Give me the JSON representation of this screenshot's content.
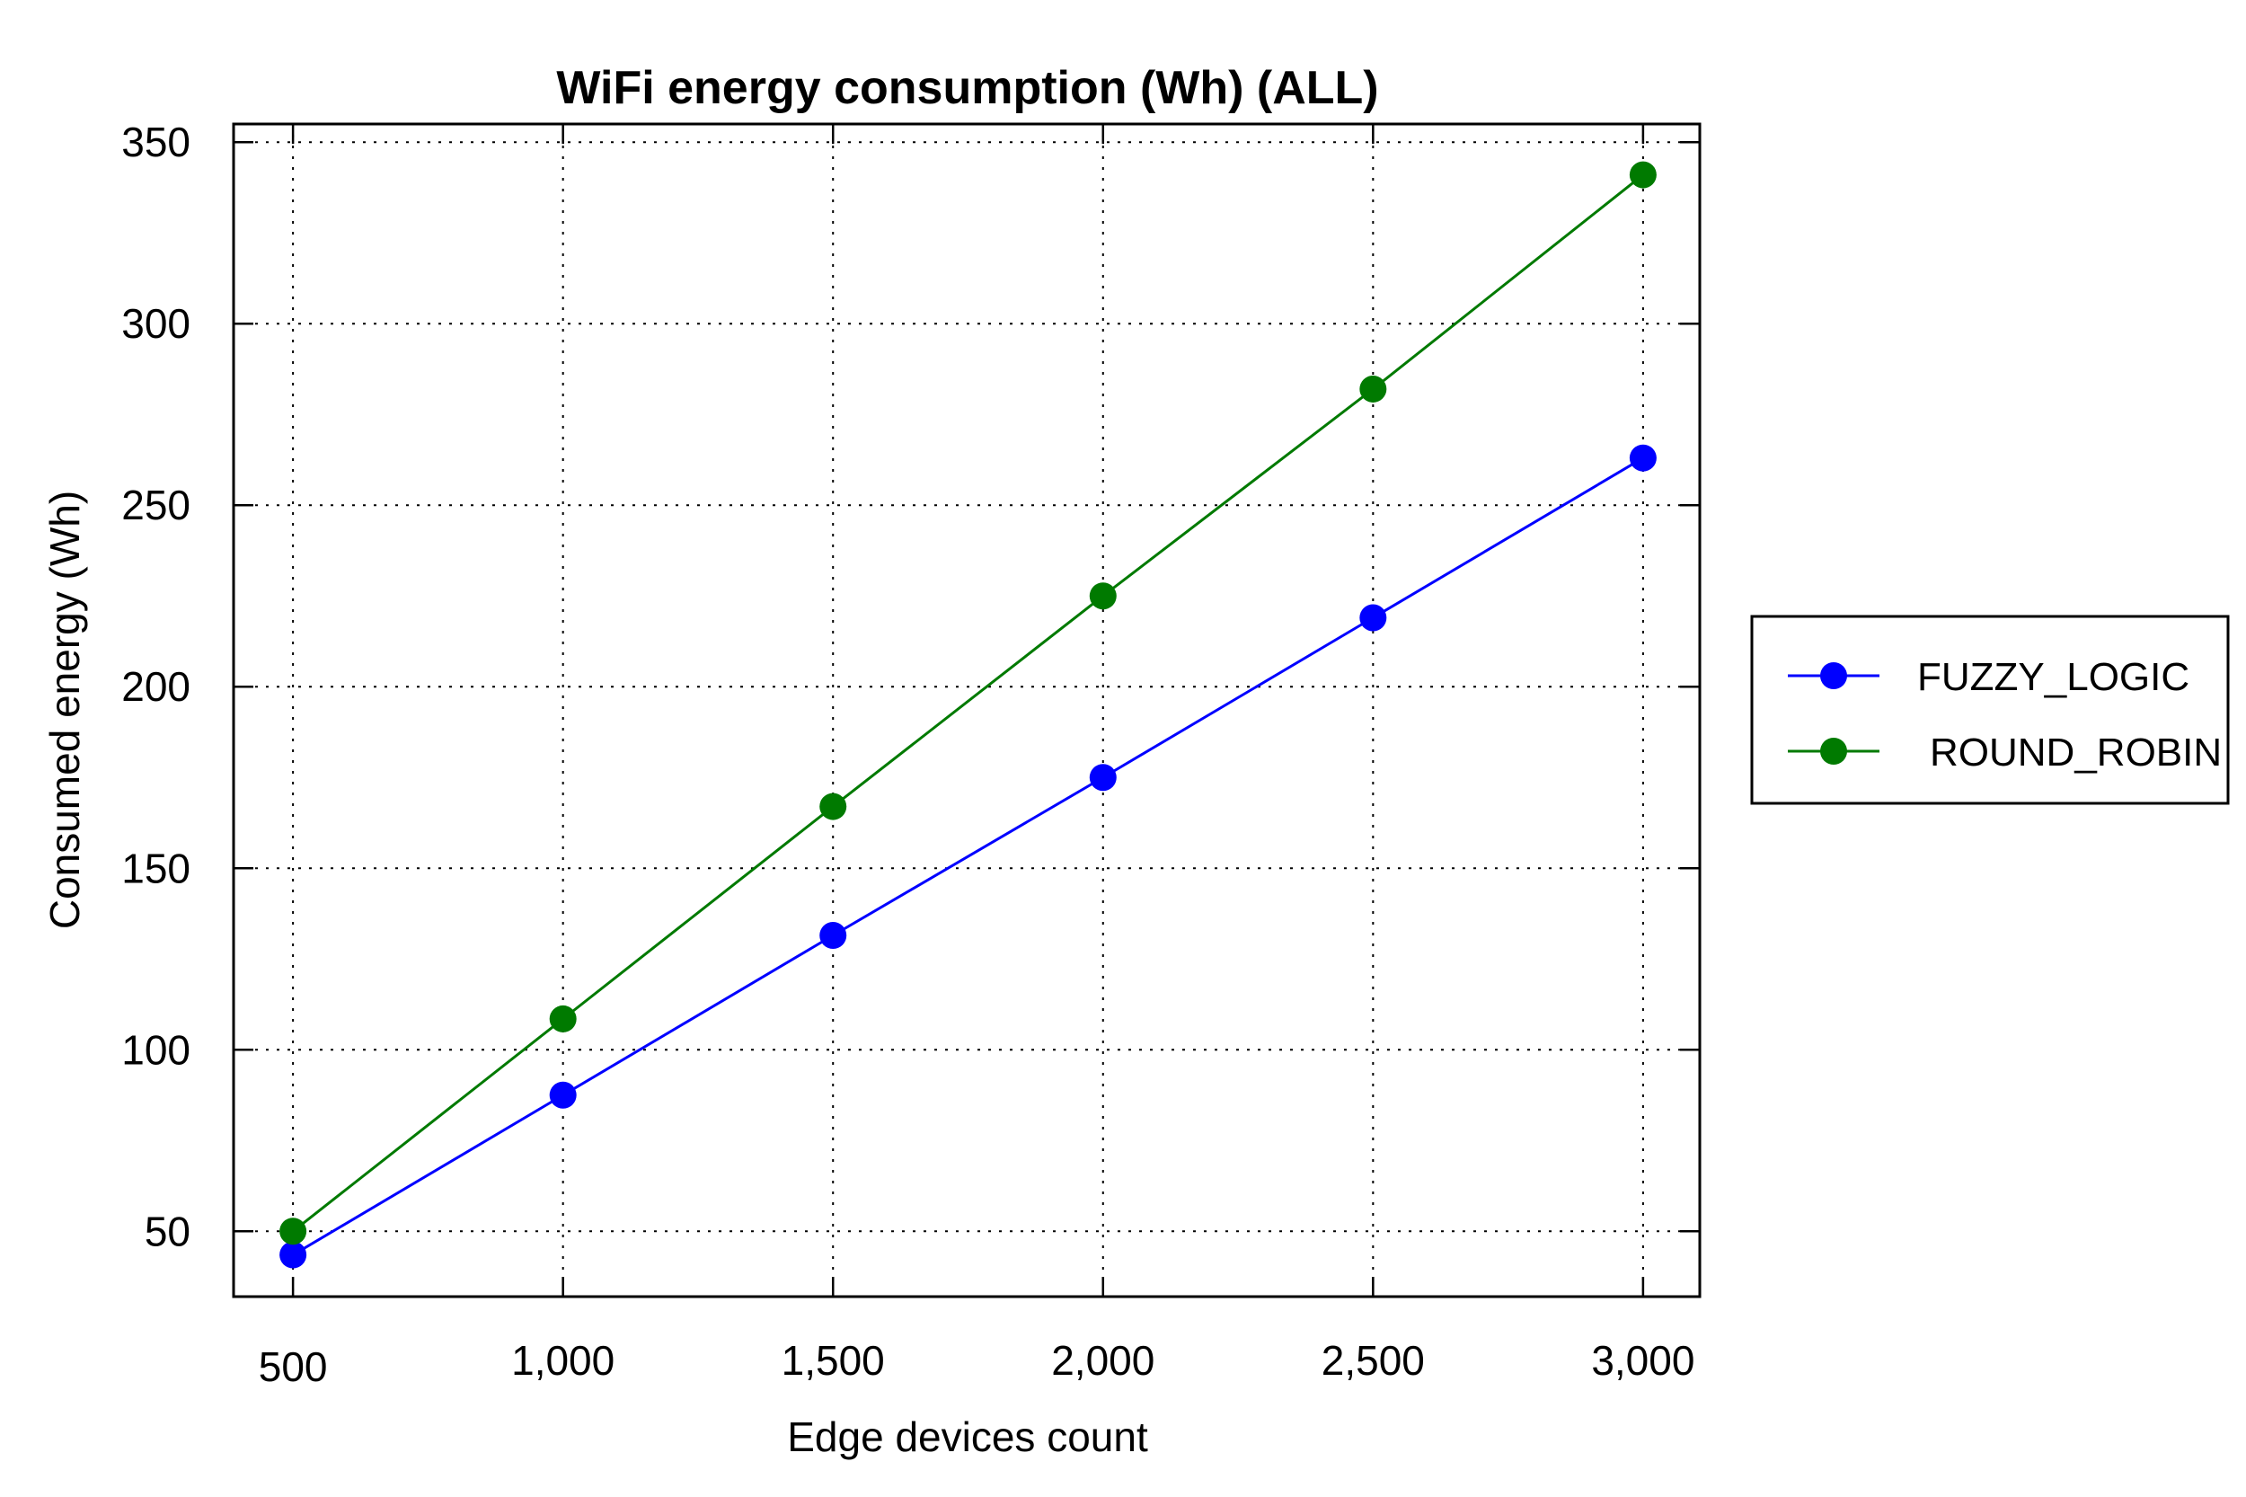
{
  "chart_data": {
    "type": "line",
    "title": "WiFi energy consumption (Wh) (ALL)",
    "xlabel": "Edge devices count",
    "ylabel": "Consumed energy (Wh)",
    "x": [
      500,
      1000,
      1500,
      2000,
      2500,
      3000
    ],
    "x_tick_labels": [
      "500",
      "1,000",
      "1,500",
      "2,000",
      "2,500",
      "3,000"
    ],
    "y_ticks": [
      50,
      100,
      150,
      200,
      250,
      300,
      350
    ],
    "y_tick_labels": [
      "50",
      "100",
      "150",
      "200",
      "250",
      "300",
      "350"
    ],
    "xlim": [
      390,
      3105
    ],
    "ylim": [
      32,
      355
    ],
    "grid": true,
    "legend_position": "outside-right",
    "series": [
      {
        "name": "FUZZY_LOGIC",
        "color": "#0000ff",
        "values": [
          43.5,
          87.5,
          131.5,
          175,
          219,
          263
        ]
      },
      {
        "name": "ROUND_ROBIN",
        "color": "#007a00",
        "values": [
          50,
          108.5,
          167,
          225,
          282,
          341
        ]
      }
    ]
  }
}
